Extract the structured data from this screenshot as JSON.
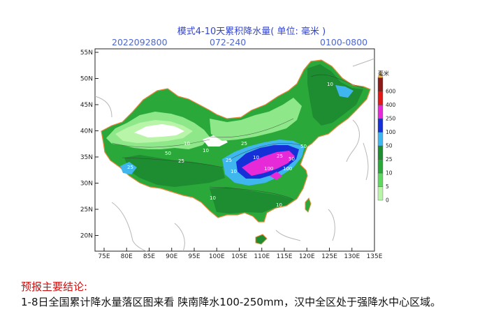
{
  "header": {
    "title": "模式4-10天累积降水量( 单位: 毫米 )",
    "init_time": "2022092800",
    "forecast_range": "072-240",
    "valid_time": "0100-0800"
  },
  "map": {
    "lat_labels": [
      "55N",
      "50N",
      "45N",
      "40N",
      "35N",
      "30N",
      "25N",
      "20N"
    ],
    "lon_labels": [
      "75E",
      "80E",
      "85E",
      "90E",
      "95E",
      "100E",
      "105E",
      "110E",
      "115E",
      "120E",
      "125E",
      "130E",
      "135E"
    ],
    "contour_labels": [
      "10",
      "25",
      "50",
      "100",
      "10",
      "25",
      "10",
      "50",
      "100",
      "25",
      "10",
      "10",
      "25",
      "50",
      "10",
      "25",
      "10",
      "10"
    ]
  },
  "legend": {
    "unit": "毫米",
    "levels": [
      "0",
      "5",
      "10",
      "25",
      "50",
      "100",
      "250",
      "400",
      "600"
    ],
    "colors": [
      "#b8f5a8",
      "#5fd860",
      "#2aa93a",
      "#1e8c30",
      "#3fb6ee",
      "#1630d8",
      "#e62ad8",
      "#e01818",
      "#8b1a1a"
    ],
    "colors_note_top": "#f2b24a"
  },
  "conclusion": {
    "heading": "预报主要结论:",
    "text": "1-8日全国累计降水量落区图来看 陕南降水100-250mm，汉中全区处于强降水中心区域。"
  }
}
